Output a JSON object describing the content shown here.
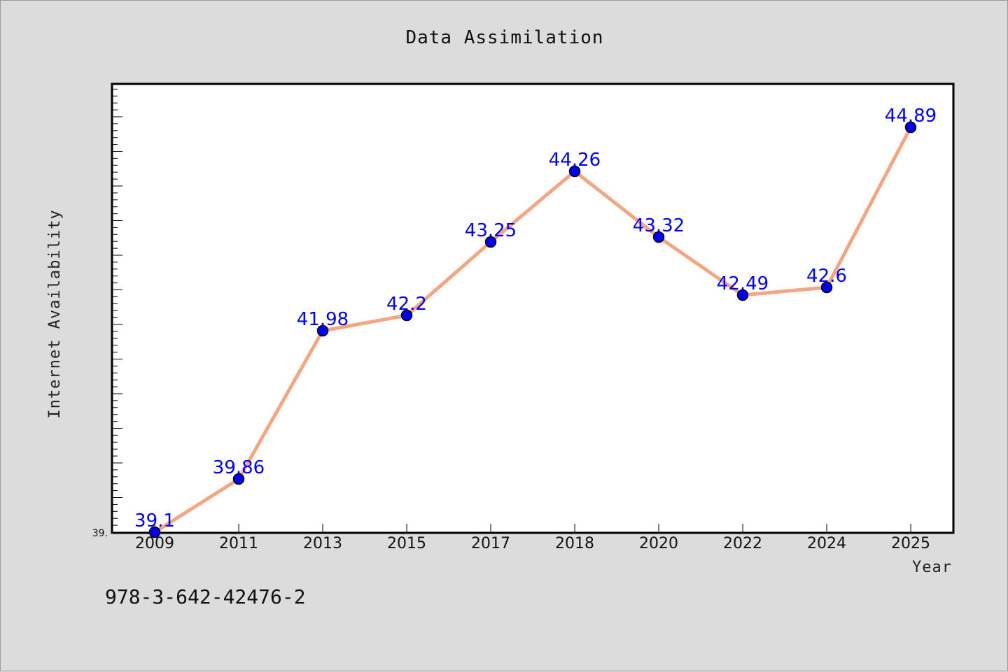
{
  "chart_data": {
    "type": "line",
    "title": "Data Assimilation",
    "xlabel": "Year",
    "ylabel": "Internet Availability",
    "categories": [
      "2009",
      "2011",
      "2013",
      "2015",
      "2017",
      "2018",
      "2020",
      "2022",
      "2024",
      "2025"
    ],
    "values": [
      39.1,
      39.86,
      41.98,
      42.2,
      43.25,
      44.26,
      43.32,
      42.49,
      42.6,
      44.89
    ],
    "data_labels": [
      "39.1",
      "39.86",
      "41.98",
      "42.2",
      "43.25",
      "44.26",
      "43.32",
      "42.49",
      "42.6",
      "44.89"
    ],
    "y_tick_label": "39.",
    "ylim": [
      39.1,
      45.5
    ],
    "grid": false,
    "legend": "none",
    "line_color": "#f4a582",
    "marker_color": "#0000ee",
    "label_color": "#0000ee"
  },
  "footer": {
    "isbn": "978-3-642-42476-2"
  }
}
